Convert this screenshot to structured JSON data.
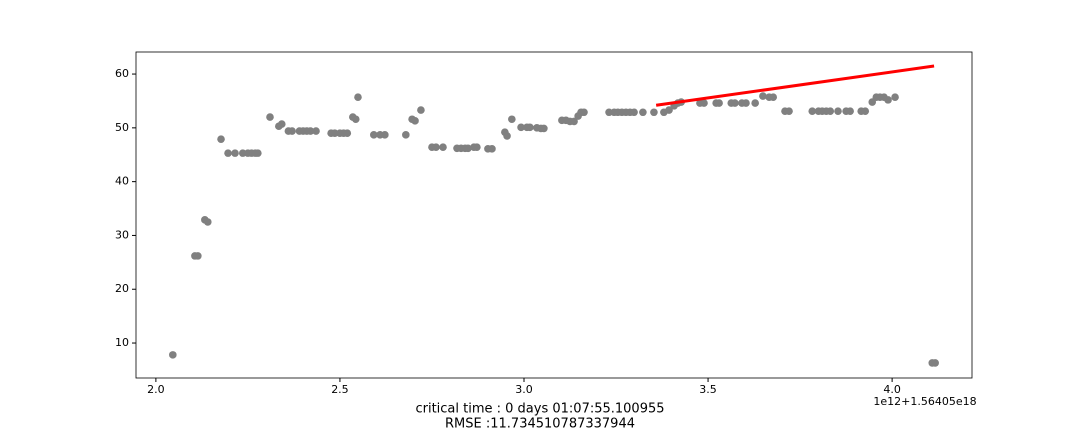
{
  "chart_data": {
    "type": "scatter",
    "xlim": [
      1.946,
      4.217
    ],
    "ylim": [
      3.5,
      64.1
    ],
    "xticks": [
      {
        "value": 2,
        "label": "2.0"
      },
      2.5,
      {
        "value": 3,
        "label": "3.0"
      },
      3.5,
      {
        "value": 4,
        "label": "4.0"
      }
    ],
    "yticks": [
      10,
      20,
      30,
      40,
      50,
      60
    ],
    "x_offset_label": "1e12+1.56405e18",
    "annotations": [
      "critical time : 0 days 01:07:55.100955",
      "RMSE :11.734510787337944"
    ],
    "series": [
      {
        "type": "scatter",
        "color": "#808080",
        "x": [
          2.046,
          2.106,
          2.114,
          2.133,
          2.141,
          2.177,
          2.196,
          2.215,
          2.236,
          2.25,
          2.26,
          2.27,
          2.277,
          2.31,
          2.334,
          2.342,
          2.36,
          2.37,
          2.39,
          2.4,
          2.41,
          2.42,
          2.435,
          2.476,
          2.486,
          2.5,
          2.51,
          2.52,
          2.535,
          2.543,
          2.549,
          2.592,
          2.609,
          2.622,
          2.679,
          2.696,
          2.704,
          2.72,
          2.75,
          2.761,
          2.78,
          2.818,
          2.829,
          2.84,
          2.848,
          2.864,
          2.872,
          2.902,
          2.913,
          2.948,
          2.954,
          2.967,
          2.992,
          3.008,
          3.016,
          3.035,
          3.046,
          3.054,
          3.103,
          3.114,
          3.125,
          3.136,
          3.147,
          3.155,
          3.163,
          3.231,
          3.245,
          3.255,
          3.266,
          3.277,
          3.288,
          3.299,
          3.323,
          3.353,
          3.38,
          3.394,
          3.408,
          3.418,
          3.427,
          3.478,
          3.489,
          3.522,
          3.53,
          3.563,
          3.573,
          3.592,
          3.603,
          3.628,
          3.649,
          3.666,
          3.677,
          3.709,
          3.72,
          3.783,
          3.8,
          3.81,
          3.821,
          3.832,
          3.853,
          3.875,
          3.886,
          3.916,
          3.927,
          3.946,
          3.957,
          3.967,
          3.978,
          3.989,
          4.008,
          4.109,
          4.117
        ],
        "values": [
          7.8,
          26.2,
          26.2,
          32.9,
          32.5,
          47.9,
          45.3,
          45.3,
          45.3,
          45.3,
          45.3,
          45.3,
          45.3,
          52.0,
          50.3,
          50.7,
          49.4,
          49.4,
          49.4,
          49.4,
          49.4,
          49.4,
          49.4,
          49.0,
          49.0,
          49.0,
          49.0,
          49.0,
          52.0,
          51.6,
          55.7,
          48.7,
          48.7,
          48.7,
          48.7,
          51.6,
          51.3,
          53.3,
          46.4,
          46.4,
          46.4,
          46.2,
          46.2,
          46.2,
          46.2,
          46.4,
          46.4,
          46.1,
          46.1,
          49.2,
          48.5,
          51.6,
          50.1,
          50.1,
          50.1,
          50.0,
          49.9,
          49.9,
          51.4,
          51.4,
          51.2,
          51.2,
          52.2,
          52.9,
          52.9,
          52.9,
          52.9,
          52.9,
          52.9,
          52.9,
          52.9,
          52.9,
          52.9,
          52.9,
          52.9,
          53.3,
          54.1,
          54.6,
          54.8,
          54.6,
          54.6,
          54.6,
          54.6,
          54.6,
          54.6,
          54.6,
          54.6,
          54.6,
          55.9,
          55.7,
          55.7,
          53.1,
          53.1,
          53.1,
          53.1,
          53.1,
          53.1,
          53.1,
          53.1,
          53.1,
          53.1,
          53.1,
          53.1,
          54.8,
          55.7,
          55.7,
          55.7,
          55.2,
          55.7,
          6.3,
          6.3
        ]
      },
      {
        "type": "line",
        "color": "#ff0000",
        "x": [
          3.359,
          4.114
        ],
        "values": [
          54.2,
          61.5
        ]
      }
    ]
  }
}
